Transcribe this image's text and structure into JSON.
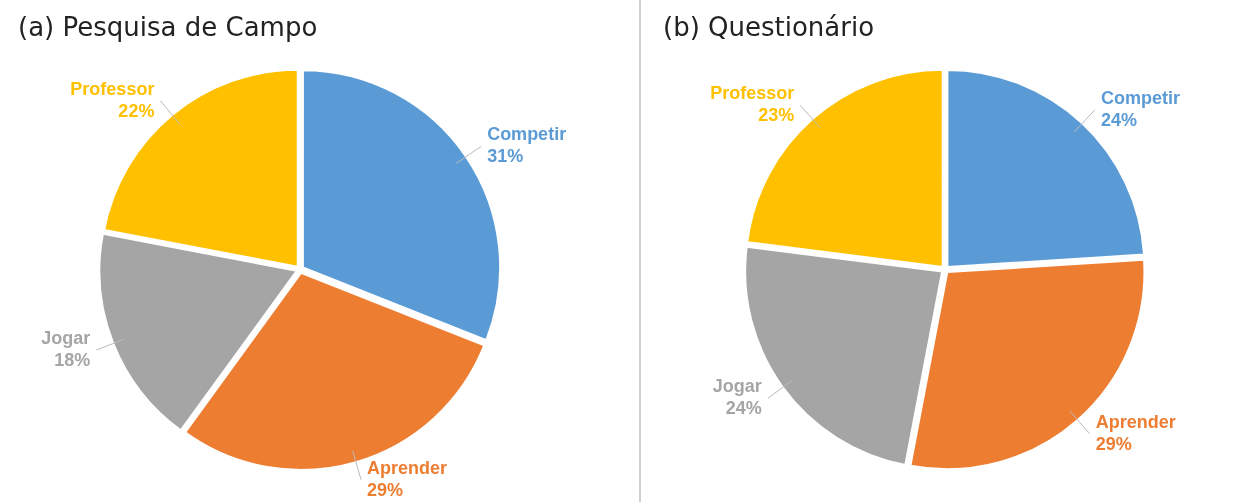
{
  "chart_data": [
    {
      "type": "pie",
      "title": "(a) Pesquisa de Campo",
      "categories": [
        "Competir",
        "Aprender",
        "Jogar",
        "Professor"
      ],
      "values": [
        31,
        29,
        18,
        22
      ],
      "colors": [
        "#5b9bd5",
        "#ed7d31",
        "#a5a5a5",
        "#ffc000"
      ],
      "value_labels": [
        "31%",
        "29%",
        "18%",
        "22%"
      ],
      "legend": false
    },
    {
      "type": "pie",
      "title": "(b) Questionário",
      "categories": [
        "Competir",
        "Aprender",
        "Jogar",
        "Professor"
      ],
      "values": [
        24,
        29,
        24,
        23
      ],
      "colors": [
        "#5b9bd5",
        "#ed7d31",
        "#a5a5a5",
        "#ffc000"
      ],
      "value_labels": [
        "24%",
        "29%",
        "24%",
        "23%"
      ],
      "legend": false
    }
  ]
}
